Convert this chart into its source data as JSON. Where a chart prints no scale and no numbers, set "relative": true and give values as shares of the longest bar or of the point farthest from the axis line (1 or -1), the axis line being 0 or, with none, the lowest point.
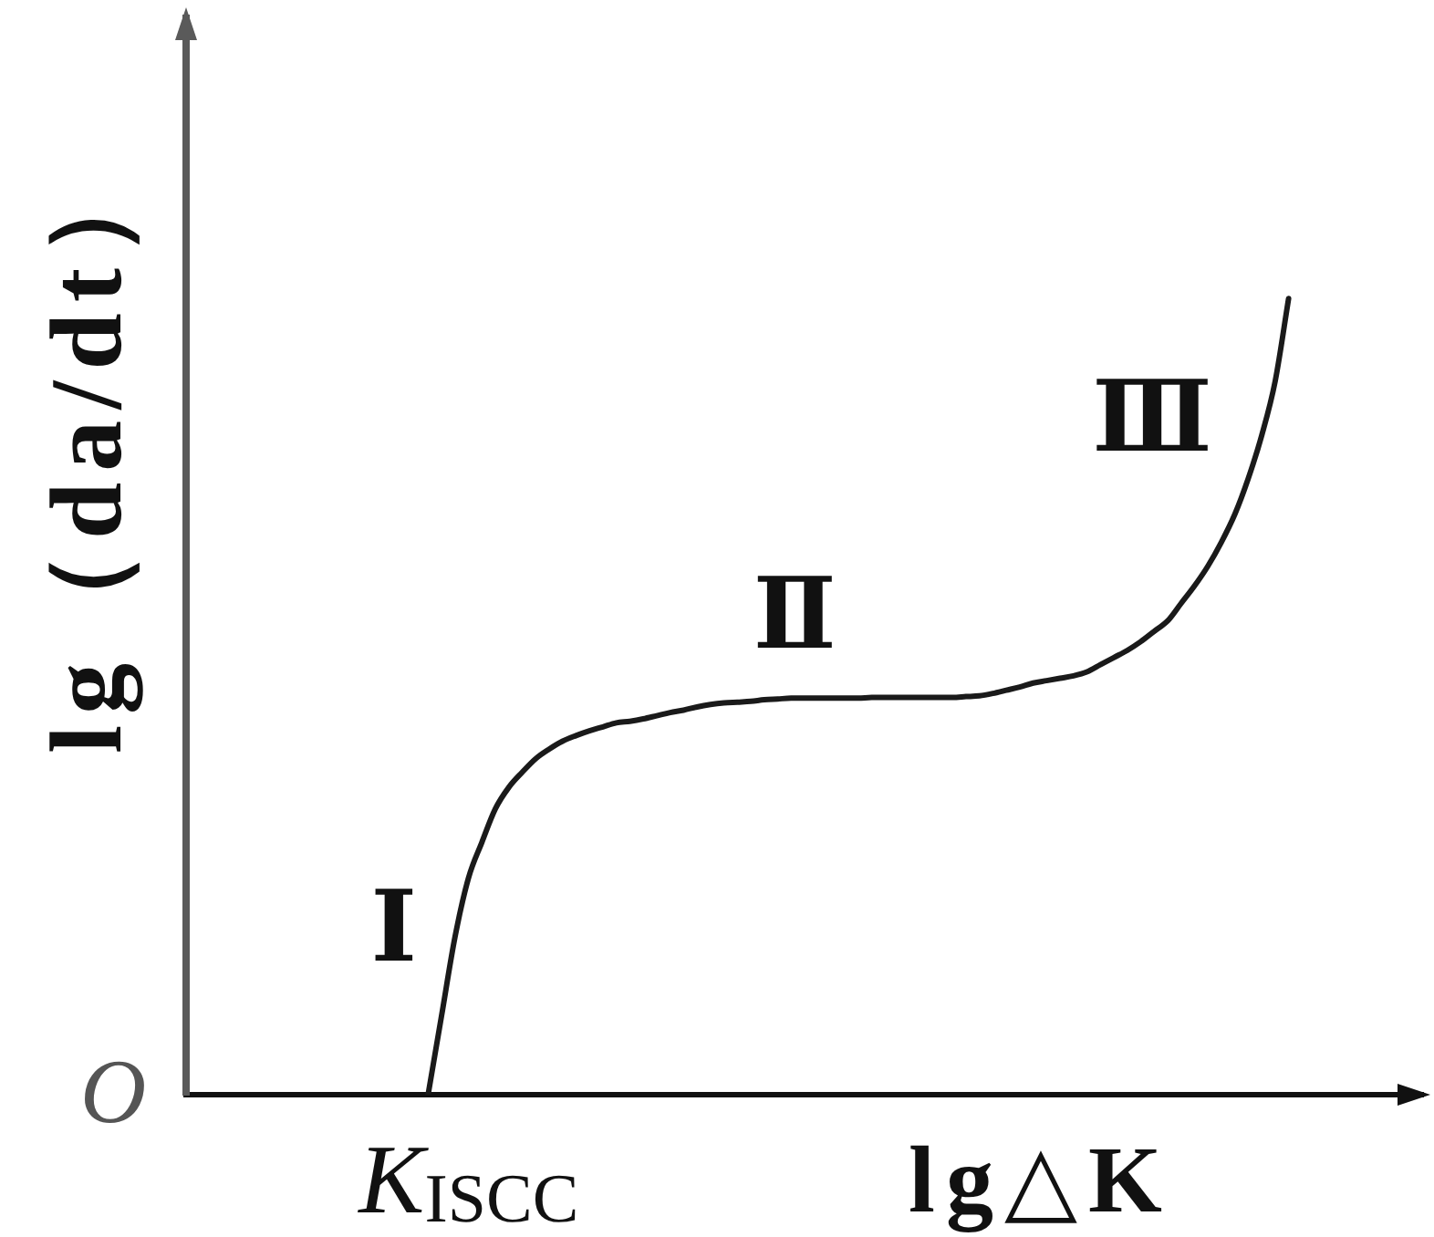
{
  "chart_data": {
    "type": "line",
    "relative": true,
    "categories": [
      null,
      null,
      null,
      null,
      null,
      null,
      null,
      null,
      null,
      null,
      null,
      null,
      null,
      null,
      null,
      null,
      null,
      null,
      null,
      null,
      null,
      null,
      null,
      null,
      null,
      null,
      null,
      null,
      null,
      null,
      null,
      null,
      null,
      null,
      null,
      null,
      null,
      null,
      null,
      null,
      null,
      null,
      null,
      null,
      null,
      null,
      null,
      null,
      null,
      null,
      null,
      null,
      null,
      null,
      null,
      null,
      null,
      null,
      null,
      null,
      null,
      null,
      null,
      null,
      null,
      null,
      null,
      null,
      null,
      null,
      null,
      null,
      null,
      null,
      null,
      null,
      null,
      null,
      null,
      null,
      null,
      null,
      null,
      null,
      null,
      null,
      null,
      null,
      null,
      null,
      null,
      null,
      null
    ],
    "values": [
      null,
      null,
      null,
      null,
      null,
      null,
      null,
      null,
      null,
      null,
      null,
      null,
      null,
      null,
      null,
      null,
      null,
      null,
      0,
      0.099,
      0.198,
      0.272,
      0.317,
      0.359,
      0.386,
      0.405,
      0.422,
      0.434,
      0.444,
      0.451,
      0.457,
      0.462,
      0.467,
      0.469,
      0.472,
      0.476,
      0.48,
      0.483,
      0.487,
      0.49,
      0.492,
      0.493,
      0.494,
      0.496,
      0.497,
      0.498,
      0.498,
      0.498,
      0.498,
      0.498,
      0.498,
      0.499,
      0.499,
      0.499,
      0.499,
      0.499,
      0.499,
      0.499,
      0.5,
      0.501,
      0.504,
      0.508,
      0.512,
      0.517,
      0.52,
      0.523,
      0.526,
      0.531,
      0.54,
      0.549,
      0.558,
      0.569,
      0.582,
      0.595,
      0.617,
      0.639,
      0.664,
      0.694,
      0.729,
      0.774,
      0.828,
      0.896,
      1,
      null,
      null,
      null,
      null,
      null,
      null,
      null,
      null,
      null,
      null
    ],
    "color": "#1a1a1a",
    "xlabel": "lg△K",
    "ylabel": "lg（da/dt）",
    "annotations": [
      "Ⅰ",
      "Ⅱ",
      "Ⅲ",
      "O",
      "K$_{ISCC}$"
    ]
  }
}
